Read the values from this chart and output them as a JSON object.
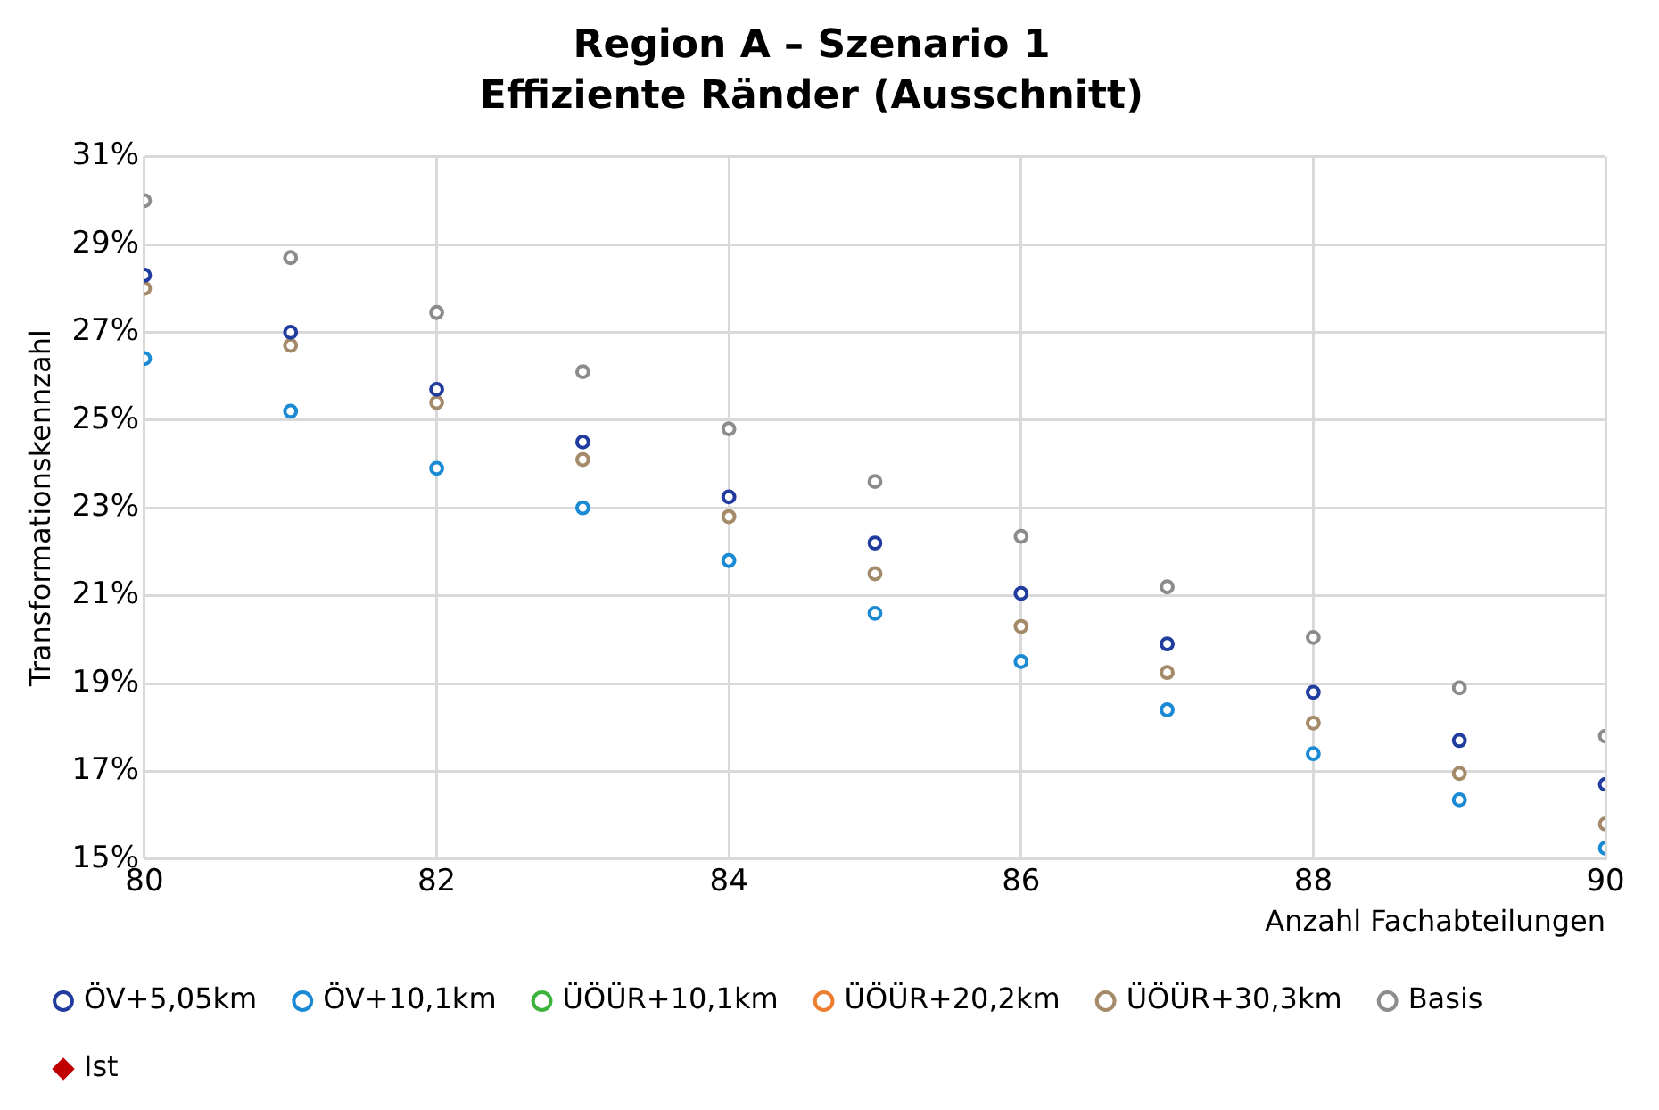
{
  "chart_data": {
    "type": "scatter",
    "title": "Region A – Szenario 1",
    "subtitle": "Effiziente Ränder (Ausschnitt)",
    "xlabel": "Anzahl Fachabteilungen",
    "ylabel": "Transformationskennzahl",
    "x": [
      80,
      81,
      82,
      83,
      84,
      85,
      86,
      87,
      88,
      89,
      90
    ],
    "series": [
      {
        "name": "ÖV+5,05km",
        "color": "#1f3c9e",
        "marker": "circle",
        "values": [
          28.3,
          27.0,
          25.7,
          24.5,
          23.25,
          22.2,
          21.05,
          19.9,
          18.8,
          17.7,
          16.7
        ]
      },
      {
        "name": "ÖV+10,1km",
        "color": "#1a8ad4",
        "marker": "circle",
        "values": [
          26.4,
          25.2,
          23.9,
          23.0,
          21.8,
          20.6,
          19.5,
          18.4,
          17.4,
          16.35,
          15.25
        ]
      },
      {
        "name": "ÜÖÜR+10,1km",
        "color": "#3cb43c",
        "marker": "circle",
        "values": [
          null,
          null,
          null,
          null,
          null,
          null,
          null,
          null,
          null,
          null,
          null
        ]
      },
      {
        "name": "ÜÖÜR+20,2km",
        "color": "#ed7d31",
        "marker": "circle",
        "values": [
          null,
          null,
          null,
          null,
          null,
          null,
          null,
          null,
          null,
          null,
          null
        ]
      },
      {
        "name": "ÜÖÜR+30,3km",
        "color": "#a58a6a",
        "marker": "circle",
        "values": [
          28.0,
          26.7,
          25.4,
          24.1,
          22.8,
          21.5,
          20.3,
          19.25,
          18.1,
          16.95,
          15.8
        ]
      },
      {
        "name": "Basis",
        "color": "#8c8c8c",
        "marker": "circle",
        "values": [
          30.0,
          28.7,
          27.45,
          26.1,
          24.8,
          23.6,
          22.35,
          21.2,
          20.05,
          18.9,
          17.8
        ]
      },
      {
        "name": "Ist",
        "color": "#c00000",
        "marker": "diamond",
        "values": [
          null,
          null,
          null,
          null,
          null,
          null,
          null,
          null,
          null,
          null,
          null
        ]
      }
    ],
    "xlim": [
      80,
      90
    ],
    "xticks": [
      80,
      82,
      84,
      86,
      88,
      90
    ],
    "ylim": [
      15,
      31
    ],
    "yticks": [
      {
        "value": 15,
        "label": "15%"
      },
      {
        "value": 17,
        "label": "17%"
      },
      {
        "value": 19,
        "label": "19%"
      },
      {
        "value": 21,
        "label": "21%"
      },
      {
        "value": 23,
        "label": "23%"
      },
      {
        "value": 25,
        "label": "25%"
      },
      {
        "value": 27,
        "label": "27%"
      },
      {
        "value": 29,
        "label": "29%"
      },
      {
        "value": 31,
        "label": "31%"
      }
    ],
    "grid": true,
    "legend": "bottom"
  }
}
